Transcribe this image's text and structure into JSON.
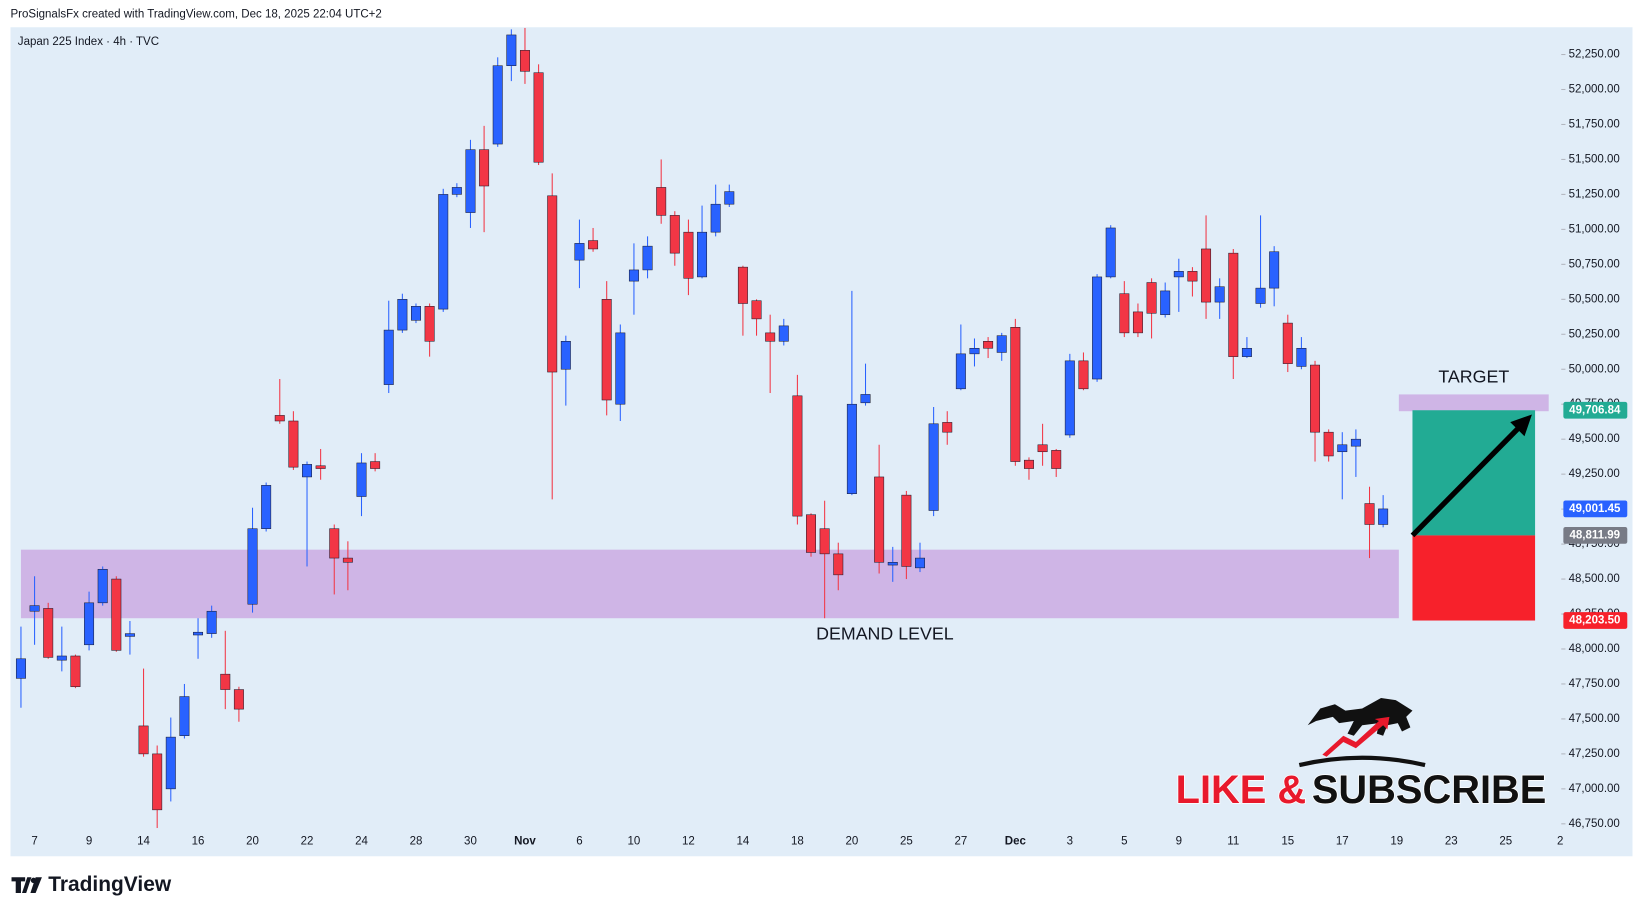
{
  "header": "ProSignalsFx created with TradingView.com, Dec 18, 2025 22:04 UTC+2",
  "chart_data": {
    "type": "candlestick",
    "title": "Japan 225 Index · 4h · TVC",
    "categories": [
      null,
      "7",
      null,
      null,
      null,
      "9",
      null,
      null,
      null,
      "14",
      null,
      null,
      null,
      "16",
      null,
      null,
      null,
      "20",
      null,
      null,
      null,
      "22",
      null,
      null,
      null,
      "24",
      null,
      null,
      null,
      "28",
      null,
      null,
      null,
      "30",
      null,
      null,
      null,
      "Nov",
      null,
      null,
      null,
      "6",
      null,
      null,
      null,
      "10",
      null,
      null,
      null,
      "12",
      null,
      null,
      null,
      "14",
      null,
      null,
      null,
      "18",
      null,
      null,
      null,
      "20",
      null,
      null,
      null,
      "25",
      null,
      null,
      null,
      "27",
      null,
      null,
      null,
      "Dec",
      null,
      null,
      null,
      "3",
      null,
      null,
      null,
      "5",
      null,
      null,
      null,
      "9",
      null,
      null,
      null,
      "11",
      null,
      null,
      null,
      "15",
      null,
      null,
      null,
      "17",
      null,
      null,
      null,
      "19",
      null,
      null,
      null,
      "23",
      null,
      null,
      null,
      "25",
      null,
      null,
      null,
      "2"
    ],
    "open": [
      47790,
      48270,
      48290,
      47920,
      47950,
      48030,
      48330,
      48500,
      48090,
      47450,
      47250,
      47000,
      47380,
      48100,
      48110,
      47820,
      47710,
      48320,
      48860,
      49670,
      49630,
      49230,
      49310,
      48860,
      48650,
      49090,
      49340,
      49890,
      50280,
      50350,
      50450,
      50430,
      51250,
      51120,
      51570,
      51610,
      52170,
      52280,
      52120,
      51240,
      50000,
      50780,
      50920,
      50500,
      49750,
      50630,
      50710,
      51300,
      51100,
      50980,
      50660,
      50980,
      51180,
      50730,
      50490,
      50260,
      50200,
      49810,
      48960,
      48860,
      48680,
      49110,
      49760,
      49230,
      48600,
      49100,
      48580,
      48990,
      49620,
      49860,
      50110,
      50200,
      50120,
      50300,
      49350,
      49460,
      49420,
      49530,
      50060,
      49930,
      50660,
      50540,
      50410,
      50620,
      50390,
      50660,
      50700,
      50860,
      50480,
      50830,
      50090,
      50470,
      50580,
      50330,
      50020,
      50030,
      49550,
      49410,
      49450,
      49040,
      48890,
      null,
      null,
      null,
      null,
      null,
      null,
      null,
      null,
      null,
      null,
      null,
      null,
      null
    ],
    "high": [
      48160,
      48520,
      48330,
      48160,
      47960,
      48410,
      48590,
      48520,
      48200,
      47860,
      47310,
      47510,
      47750,
      48220,
      48310,
      48130,
      47730,
      49010,
      49190,
      49930,
      49700,
      49340,
      49430,
      48890,
      48770,
      49400,
      49400,
      50490,
      50540,
      50470,
      50470,
      51290,
      51330,
      51640,
      51740,
      52230,
      52430,
      52440,
      52180,
      51400,
      50240,
      51070,
      51010,
      50630,
      50320,
      50900,
      50950,
      51500,
      51130,
      51070,
      51170,
      51320,
      51320,
      50740,
      50500,
      50390,
      50360,
      49960,
      48970,
      49060,
      48760,
      50560,
      50040,
      49460,
      48730,
      49130,
      48760,
      49730,
      49700,
      50320,
      50220,
      50230,
      50260,
      50360,
      49370,
      49610,
      49430,
      50110,
      50120,
      50680,
      51030,
      50630,
      50470,
      50650,
      50620,
      50790,
      50730,
      51100,
      50650,
      50860,
      50230,
      51100,
      50880,
      50390,
      50230,
      50060,
      49570,
      49550,
      49570,
      49160,
      49100,
      null,
      null,
      null,
      null,
      null,
      null,
      null,
      null,
      null,
      null,
      null,
      null,
      null
    ],
    "low": [
      47580,
      48030,
      47930,
      47840,
      47720,
      47990,
      48310,
      47980,
      47960,
      47230,
      46720,
      46910,
      47360,
      47930,
      48080,
      47570,
      47480,
      48260,
      48840,
      49610,
      49280,
      48590,
      49210,
      48390,
      48420,
      48950,
      49270,
      49830,
      50260,
      50330,
      50090,
      50410,
      51230,
      51010,
      50980,
      51590,
      52060,
      52040,
      51460,
      49070,
      49740,
      50580,
      50840,
      49670,
      49630,
      50390,
      50650,
      51040,
      50740,
      50530,
      50650,
      50950,
      51160,
      50240,
      50240,
      49830,
      50170,
      48890,
      48660,
      48220,
      48420,
      49100,
      49740,
      48540,
      48480,
      48500,
      48550,
      48950,
      49460,
      49850,
      50020,
      50080,
      50060,
      49310,
      49210,
      49310,
      49230,
      49510,
      49850,
      49910,
      50650,
      50230,
      50230,
      50220,
      50370,
      50410,
      50520,
      50360,
      50360,
      49930,
      50080,
      50440,
      50450,
      49980,
      50000,
      49340,
      49340,
      49070,
      49230,
      48650,
      48870,
      null,
      null,
      null,
      null,
      null,
      null,
      null,
      null,
      null,
      null,
      null,
      null,
      null
    ],
    "close": [
      47930,
      48310,
      47940,
      47950,
      47730,
      48330,
      48570,
      47990,
      48110,
      47250,
      46850,
      47370,
      47660,
      48120,
      48270,
      47710,
      47570,
      48860,
      49170,
      49630,
      49300,
      49320,
      49290,
      48650,
      48620,
      49330,
      49290,
      50280,
      50500,
      50450,
      50200,
      51250,
      51300,
      51570,
      51310,
      52170,
      52390,
      52130,
      51480,
      49980,
      50200,
      50900,
      50860,
      49780,
      50260,
      50710,
      50880,
      51100,
      50830,
      50650,
      50980,
      51180,
      51270,
      50470,
      50360,
      50200,
      50310,
      48950,
      48690,
      48680,
      48530,
      49750,
      49820,
      48620,
      48620,
      48590,
      48650,
      49610,
      49550,
      50110,
      50150,
      50150,
      50240,
      49340,
      49290,
      49410,
      49290,
      50060,
      49860,
      50660,
      51010,
      50260,
      50260,
      50400,
      50560,
      50700,
      50630,
      50480,
      50590,
      50090,
      50150,
      50580,
      50840,
      50040,
      50150,
      49550,
      49380,
      49460,
      49500,
      48890,
      49001.45,
      null,
      null,
      null,
      null,
      null,
      null,
      null,
      null,
      null,
      null,
      null,
      null,
      null
    ],
    "up_color": "#2962ff",
    "down_color": "#f23645",
    "ylim": [
      46683,
      52445
    ],
    "yticks": [
      {
        "value": 46750,
        "label": "46,750.00"
      },
      {
        "value": 47000,
        "label": "47,000.00"
      },
      {
        "value": 47250,
        "label": "47,250.00"
      },
      {
        "value": 47500,
        "label": "47,500.00"
      },
      {
        "value": 47750,
        "label": "47,750.00"
      },
      {
        "value": 48000,
        "label": "48,000.00"
      },
      {
        "value": 48250,
        "label": "48,250.00"
      },
      {
        "value": 48500,
        "label": "48,500.00"
      },
      {
        "value": 48750,
        "label": "48,750.00"
      },
      {
        "value": 49000,
        "label": "49,000.00"
      },
      {
        "value": 49250,
        "label": "49,250.00"
      },
      {
        "value": 49500,
        "label": "49,500.00"
      },
      {
        "value": 49750,
        "label": "49,750.00"
      },
      {
        "value": 50000,
        "label": "50,000.00"
      },
      {
        "value": 50250,
        "label": "50,250.00"
      },
      {
        "value": 50500,
        "label": "50,500.00"
      },
      {
        "value": 50750,
        "label": "50,750.00"
      },
      {
        "value": 51000,
        "label": "51,000.00"
      },
      {
        "value": 51250,
        "label": "51,250.00"
      },
      {
        "value": 51500,
        "label": "51,500.00"
      },
      {
        "value": 51750,
        "label": "51,750.00"
      },
      {
        "value": 52000,
        "label": "52,000.00"
      },
      {
        "value": 52250,
        "label": "52,250.00"
      }
    ],
    "grid": false,
    "zones": [
      {
        "label": "DEMAND LEVEL",
        "ylim": [
          48220,
          48710
        ],
        "color": "#cdaee3"
      },
      {
        "label": "TARGET",
        "ylim": [
          49700,
          49820
        ],
        "color": "#cdaee3"
      }
    ],
    "position": {
      "target": {
        "value": 49706.84,
        "label": "49,706.84"
      },
      "entry": {
        "value": 48811.99,
        "label": "48,811.99"
      },
      "stop": {
        "value": 48203.5,
        "label": "48,203.50"
      },
      "profit_color": "#22ab94",
      "loss_color": "#f7212b",
      "entry_color": "#787b86"
    },
    "last_price": {
      "value": 49001.45,
      "label": "49,001.45",
      "color": "#2962ff"
    }
  },
  "promo": {
    "like": "LIKE &",
    "subscribe": "SUBSCRIBE"
  },
  "footer": "TradingView"
}
